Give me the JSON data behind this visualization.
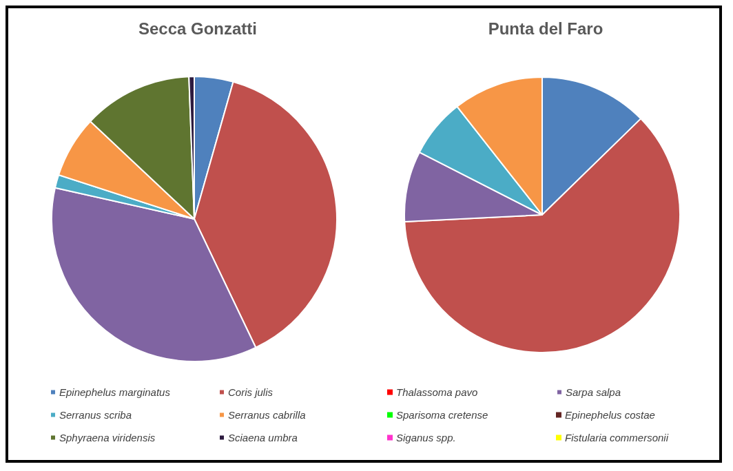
{
  "chart_data": {
    "type": "pie",
    "legend": "bottom",
    "categories": [
      "Epinephelus marginatus",
      "Coris julis",
      "Thalassoma pavo",
      "Sarpa salpa",
      "Serranus scriba",
      "Serranus cabrilla",
      "Sparisoma cretense",
      "Epinephelus costae",
      "Sphyraena viridensis",
      "Sciaena umbra",
      "Siganus spp.",
      "Fistularia commersonii"
    ],
    "colors": [
      "#4f81bd",
      "#c0504d",
      "#ff0000",
      "#8064a2",
      "#4bacc6",
      "#f79646",
      "#00ff00",
      "#632523",
      "#5f7530",
      "#2d1b3f",
      "#ff33cc",
      "#ffff00"
    ],
    "series": [
      {
        "name": "Secca Gonzatti",
        "values": [
          4.4,
          38.5,
          0,
          35.6,
          1.5,
          7,
          0,
          0,
          12.4,
          0.6,
          0,
          0
        ]
      },
      {
        "name": "Punta del Faro",
        "values": [
          12.7,
          61.5,
          0,
          8.3,
          6.9,
          10.6,
          0,
          0,
          0,
          0,
          0,
          0
        ]
      }
    ]
  }
}
